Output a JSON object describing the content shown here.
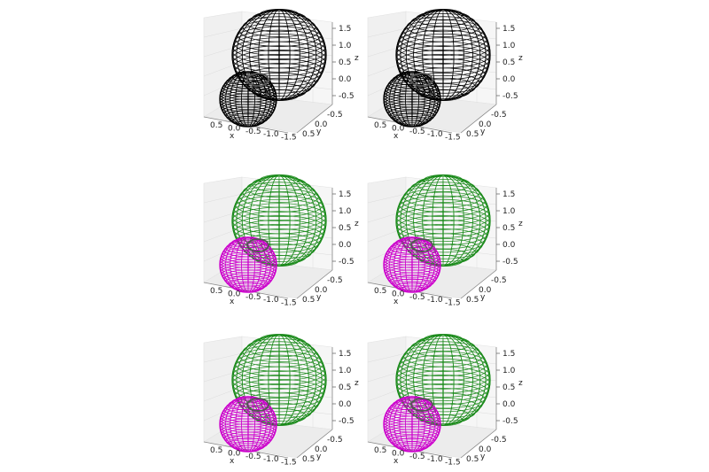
{
  "chart_data": {
    "type": "3d-wireframe",
    "grid": true,
    "panels": [
      {
        "row": 0,
        "col": 0,
        "colors": {
          "large": "#000000",
          "small": "#000000"
        }
      },
      {
        "row": 0,
        "col": 1,
        "colors": {
          "large": "#000000",
          "small": "#000000"
        }
      },
      {
        "row": 1,
        "col": 0,
        "colors": {
          "large": "#1a8a1a",
          "small": "#cc00cc"
        }
      },
      {
        "row": 1,
        "col": 1,
        "colors": {
          "large": "#1a8a1a",
          "small": "#cc00cc"
        }
      },
      {
        "row": 2,
        "col": 0,
        "colors": {
          "large": "#1a8a1a",
          "small": "#cc00cc"
        }
      },
      {
        "row": 2,
        "col": 1,
        "colors": {
          "large": "#1a8a1a",
          "small": "#cc00cc"
        }
      }
    ],
    "axes": {
      "x": {
        "label": "x",
        "ticks": [
          "0.5",
          "0.0",
          "-0.5",
          "-1.0",
          "-1.5"
        ]
      },
      "y": {
        "label": "y",
        "ticks": [
          "0.5",
          "0.0",
          "-0.5"
        ]
      },
      "z": {
        "label": "z",
        "ticks": [
          "1.5",
          "1.0",
          "0.5",
          "0.0",
          "-0.5"
        ]
      }
    },
    "surfaces": [
      {
        "name": "large",
        "center": [
          -0.6,
          -0.3,
          0.9
        ],
        "radii": [
          0.75,
          0.75,
          0.9
        ]
      },
      {
        "name": "small",
        "center": [
          0.3,
          0.2,
          -0.3
        ],
        "radii": [
          0.45,
          0.45,
          0.5
        ]
      }
    ]
  }
}
